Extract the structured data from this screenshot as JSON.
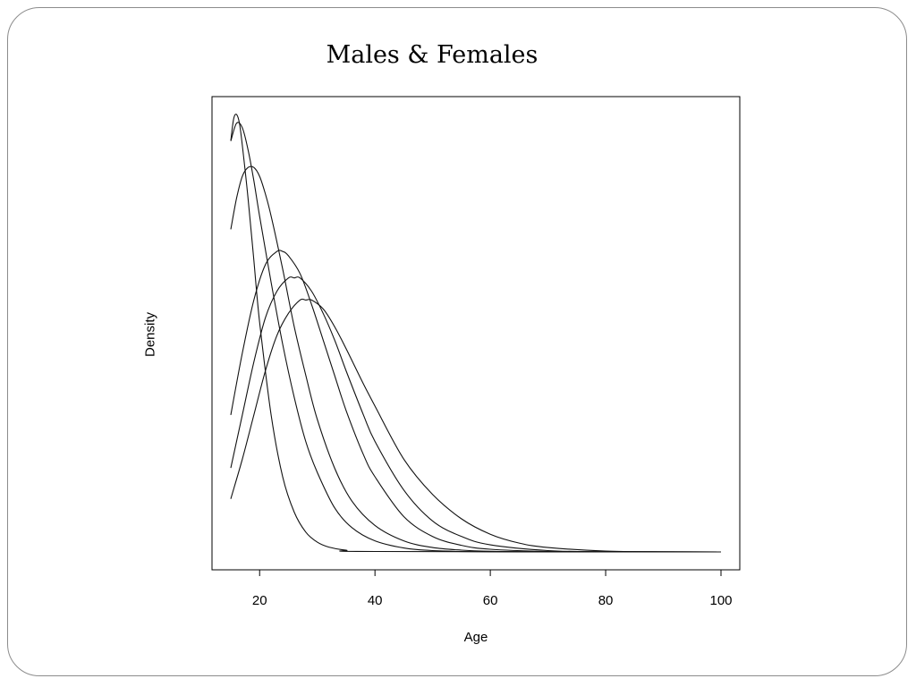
{
  "slide": {
    "title": "Males & Females"
  },
  "chart_data": {
    "type": "line",
    "title": "Males & Females",
    "xlabel": "Age",
    "ylabel": "Density",
    "xlim": [
      15,
      100
    ],
    "ylim": [
      0,
      1
    ],
    "xticks": [
      20,
      40,
      60,
      80,
      100
    ],
    "grid": false,
    "legend": "none",
    "line_color": "#111111",
    "series": [
      {
        "x": [
          15,
          15.5,
          16,
          16.5,
          17,
          18,
          19,
          20,
          22,
          24,
          26,
          28,
          30,
          32,
          35,
          40,
          100
        ],
        "y": [
          0.93,
          0.98,
          0.99,
          0.97,
          0.92,
          0.8,
          0.66,
          0.52,
          0.31,
          0.17,
          0.09,
          0.045,
          0.022,
          0.011,
          0.004,
          0.001,
          0
        ]
      },
      {
        "x": [
          15,
          16,
          17,
          18,
          19,
          20,
          22,
          24,
          26,
          28,
          30,
          33,
          36,
          40,
          45,
          50,
          60,
          100
        ],
        "y": [
          0.93,
          0.97,
          0.96,
          0.91,
          0.84,
          0.76,
          0.61,
          0.47,
          0.35,
          0.25,
          0.18,
          0.1,
          0.055,
          0.025,
          0.009,
          0.003,
          0.0005,
          0
        ]
      },
      {
        "x": [
          15,
          16,
          17,
          18,
          19,
          20,
          21,
          22,
          24,
          26,
          28,
          30,
          33,
          36,
          40,
          45,
          50,
          55,
          60,
          70,
          100
        ],
        "y": [
          0.73,
          0.8,
          0.85,
          0.87,
          0.87,
          0.85,
          0.81,
          0.76,
          0.64,
          0.51,
          0.4,
          0.3,
          0.19,
          0.115,
          0.06,
          0.025,
          0.01,
          0.004,
          0.0015,
          0.0002,
          0
        ]
      },
      {
        "x": [
          15,
          17,
          19,
          21,
          23,
          24,
          25,
          27,
          29,
          31,
          33,
          35,
          38,
          40,
          45,
          50,
          55,
          60,
          70,
          80,
          100
        ],
        "y": [
          0.31,
          0.45,
          0.57,
          0.65,
          0.68,
          0.68,
          0.67,
          0.63,
          0.56,
          0.48,
          0.4,
          0.32,
          0.22,
          0.17,
          0.08,
          0.035,
          0.015,
          0.006,
          0.001,
          0.0002,
          0
        ]
      },
      {
        "x": [
          15,
          17,
          19,
          21,
          23,
          25,
          26,
          27,
          29,
          31,
          33,
          35,
          38,
          40,
          45,
          50,
          55,
          60,
          70,
          80,
          100
        ],
        "y": [
          0.19,
          0.31,
          0.43,
          0.53,
          0.59,
          0.62,
          0.62,
          0.62,
          0.59,
          0.54,
          0.48,
          0.41,
          0.31,
          0.25,
          0.14,
          0.07,
          0.035,
          0.016,
          0.003,
          0.0005,
          0
        ]
      },
      {
        "x": [
          15,
          17,
          19,
          21,
          23,
          25,
          27,
          28,
          29,
          31,
          33,
          35,
          38,
          40,
          45,
          50,
          55,
          60,
          65,
          70,
          80,
          90,
          100
        ],
        "y": [
          0.12,
          0.21,
          0.31,
          0.41,
          0.49,
          0.54,
          0.57,
          0.57,
          0.57,
          0.55,
          0.51,
          0.46,
          0.38,
          0.33,
          0.21,
          0.13,
          0.075,
          0.04,
          0.02,
          0.01,
          0.002,
          0.0003,
          0
        ]
      }
    ]
  }
}
